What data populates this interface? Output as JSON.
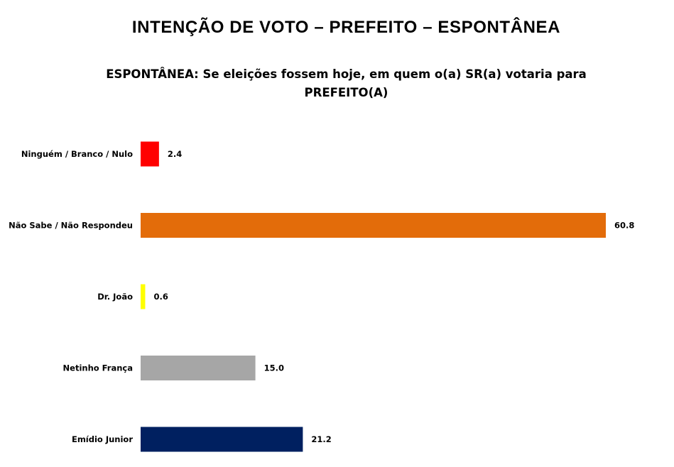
{
  "page": {
    "title": "INTENÇÃO DE VOTO – PREFEITO – ESPONTÂNEA"
  },
  "chart_data": {
    "type": "bar",
    "orientation": "horizontal",
    "subtitle": "ESPONTÂNEA: Se eleições fossem hoje, em quem o(a) SR(a) votaria para PREFEITO(A)",
    "categories": [
      "Ninguém / Branco / Nulo",
      "Não Sabe / Não Respondeu",
      "Dr. João",
      "Netinho França",
      "Emídio Junior"
    ],
    "values": [
      2.4,
      60.8,
      0.6,
      15.0,
      21.2
    ],
    "value_labels": [
      "2.4",
      "60.8",
      "0.6",
      "15.0",
      "21.2"
    ],
    "colors": [
      "#ff0000",
      "#e36c0a",
      "#ffff00",
      "#a6a6a6",
      "#002060"
    ],
    "xlim": [
      0,
      60.8
    ],
    "grid": false,
    "legend": "none"
  }
}
